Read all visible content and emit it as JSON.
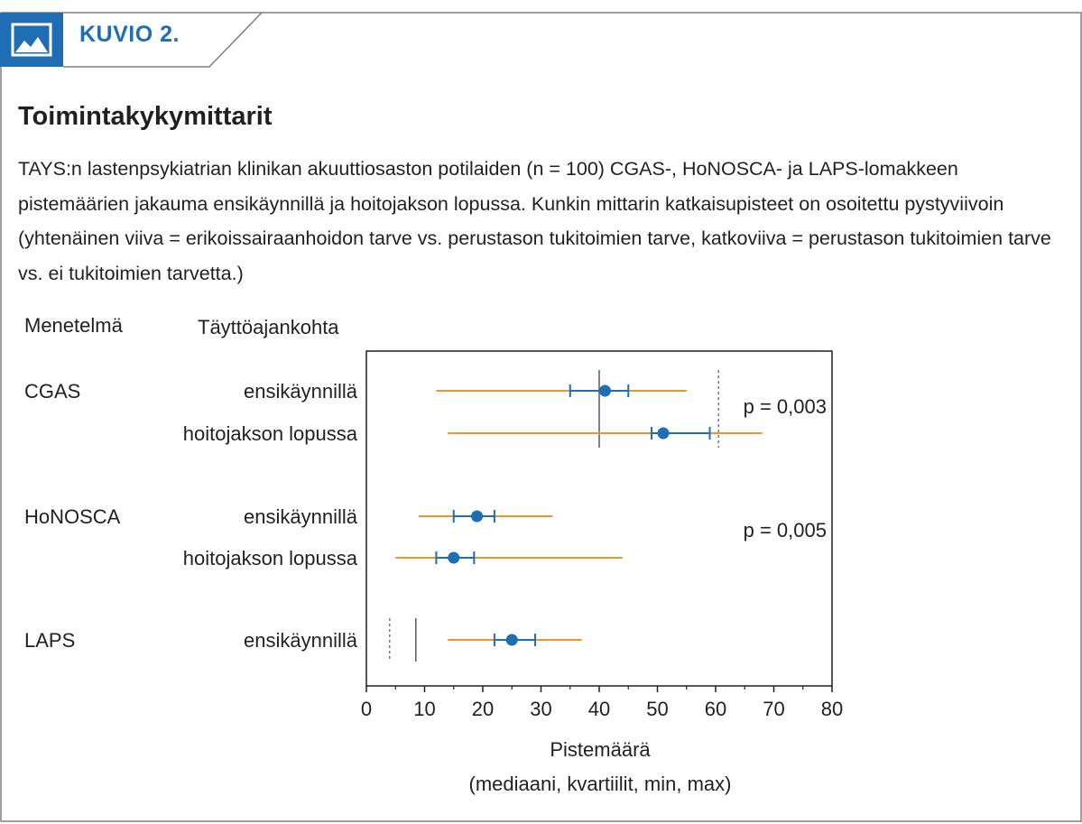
{
  "header": {
    "label": "KUVIO 2.",
    "icon": "image-icon"
  },
  "title": "Toimintakykymittarit",
  "caption": "TAYS:n lastenpsykiatrian klinikan akuuttiosaston potilaiden (n = 100) CGAS-, HoNOSCA- ja LAPS-lomakkeen pistemäärien jakauma ensikäynnillä ja hoitojakson lopussa. Kunkin mittarin katkaisupisteet on osoitettu pystyviivoin (yhtenäinen viiva = erikoissairaanhoidon tarve vs. perustason tukitoimien tarve, katkoviiva = perustason tukitoimien tarve vs. ei tukitoimien tarvetta.)",
  "colors": {
    "accent": "#1f6db3",
    "range": "#e8952f",
    "median": "#1f6db3",
    "cutoff": "#595959"
  },
  "chart_data": {
    "type": "forest",
    "column_headers": {
      "method": "Menetelmä",
      "time": "Täyttöajankohta"
    },
    "xlabel": "Pistemäärä",
    "xlabel_sub": "(mediaani, kvartiilit, min, max)",
    "xlim": [
      0,
      80
    ],
    "xticks": [
      0,
      10,
      20,
      30,
      40,
      50,
      60,
      70,
      80
    ],
    "grid": false,
    "rows": [
      {
        "method": "CGAS",
        "time": "ensikäynnillä",
        "min": 12,
        "q1": 35,
        "median": 41,
        "q3": 45,
        "max": 55
      },
      {
        "method": "",
        "time": "hoitojakson lopussa",
        "min": 14,
        "q1": 49,
        "median": 51,
        "q3": 59,
        "max": 68
      },
      {
        "method": "HoNOSCA",
        "time": "ensikäynnillä",
        "min": 9,
        "q1": 15,
        "median": 19,
        "q3": 22,
        "max": 32
      },
      {
        "method": "",
        "time": "hoitojakson lopussa",
        "min": 5,
        "q1": 12,
        "median": 15,
        "q3": 18.5,
        "max": 44
      },
      {
        "method": "LAPS",
        "time": "ensikäynnillä",
        "min": 14,
        "q1": 22,
        "median": 25,
        "q3": 29,
        "max": 37
      }
    ],
    "cutoffs": [
      {
        "group": "CGAS",
        "solid": 40,
        "dashed": 60.5
      },
      {
        "group": "LAPS",
        "solid": 8.5,
        "dashed": 4
      }
    ],
    "annotations": [
      {
        "group": "CGAS",
        "text": "p = 0,003"
      },
      {
        "group": "HoNOSCA",
        "text": "p = 0,005"
      }
    ]
  }
}
